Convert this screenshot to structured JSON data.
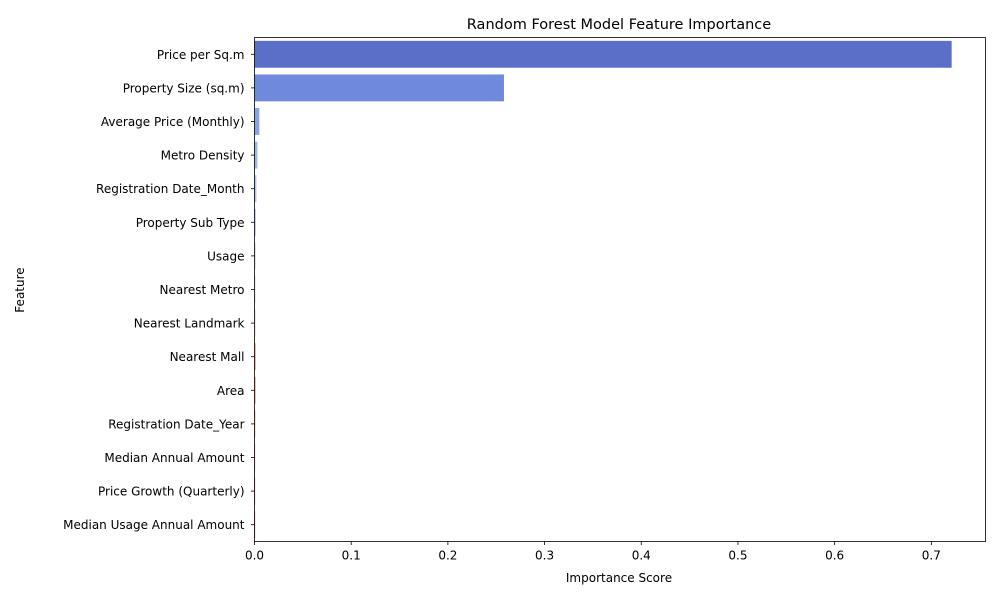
{
  "chart_data": {
    "type": "bar",
    "orientation": "horizontal",
    "title": "Random Forest Model Feature Importance",
    "xlabel": "Importance Score",
    "ylabel": "Feature",
    "xlim": [
      0,
      0.756
    ],
    "xticks": [
      0.0,
      0.1,
      0.2,
      0.3,
      0.4,
      0.5,
      0.6,
      0.7
    ],
    "xtick_labels": [
      "0.0",
      "0.1",
      "0.2",
      "0.3",
      "0.4",
      "0.5",
      "0.6",
      "0.7"
    ],
    "grid": false,
    "legend": "none",
    "categories": [
      "Price per Sq.m",
      "Property Size (sq.m)",
      "Average Price (Monthly)",
      "Metro Density",
      "Registration Date_Month",
      "Property Sub Type",
      "Usage",
      "Nearest Metro",
      "Nearest Landmark",
      "Nearest Mall",
      "Area",
      "Registration Date_Year",
      "Median Annual Amount",
      "Price Growth (Quarterly)",
      "Median Usage Annual Amount"
    ],
    "values": [
      0.721,
      0.258,
      0.005,
      0.003,
      0.002,
      0.0015,
      0.0012,
      0.001,
      0.001,
      0.0015,
      0.0012,
      0.0008,
      0.0005,
      0.0004,
      0.0003
    ],
    "colors": [
      "#5b6fc8",
      "#6f89dc",
      "#8aa3e8",
      "#9eb4ef",
      "#b3c2f2",
      "#c4ccf0",
      "#d2d3ea",
      "#dcd3dc",
      "#e4c9c2",
      "#e8b6a3",
      "#e59e86",
      "#dd856c",
      "#d26a54",
      "#c4503f",
      "#b3352e"
    ]
  }
}
